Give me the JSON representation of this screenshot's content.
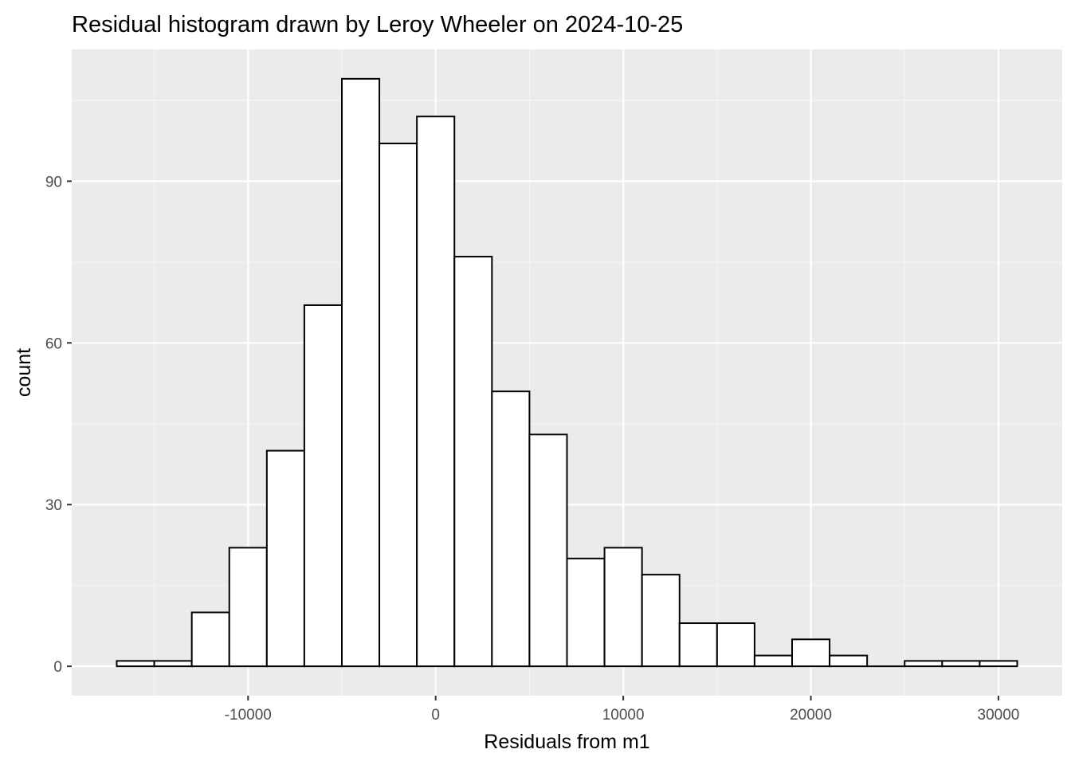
{
  "chart_data": {
    "type": "bar",
    "title": "Residual histogram drawn by Leroy Wheeler on 2024-10-25",
    "xlabel": "Residuals from m1",
    "ylabel": "count",
    "bin_width": 2000,
    "bins": [
      {
        "x0": -17000,
        "x1": -15000,
        "count": 1
      },
      {
        "x0": -15000,
        "x1": -13000,
        "count": 1
      },
      {
        "x0": -13000,
        "x1": -11000,
        "count": 10
      },
      {
        "x0": -11000,
        "x1": -9000,
        "count": 22
      },
      {
        "x0": -9000,
        "x1": -7000,
        "count": 40
      },
      {
        "x0": -7000,
        "x1": -5000,
        "count": 67
      },
      {
        "x0": -5000,
        "x1": -3000,
        "count": 109
      },
      {
        "x0": -3000,
        "x1": -1000,
        "count": 97
      },
      {
        "x0": -1000,
        "x1": 1000,
        "count": 102
      },
      {
        "x0": 1000,
        "x1": 3000,
        "count": 76
      },
      {
        "x0": 3000,
        "x1": 5000,
        "count": 51
      },
      {
        "x0": 5000,
        "x1": 7000,
        "count": 43
      },
      {
        "x0": 7000,
        "x1": 9000,
        "count": 20
      },
      {
        "x0": 9000,
        "x1": 11000,
        "count": 22
      },
      {
        "x0": 11000,
        "x1": 13000,
        "count": 17
      },
      {
        "x0": 13000,
        "x1": 15000,
        "count": 8
      },
      {
        "x0": 15000,
        "x1": 17000,
        "count": 8
      },
      {
        "x0": 17000,
        "x1": 19000,
        "count": 2
      },
      {
        "x0": 19000,
        "x1": 21000,
        "count": 5
      },
      {
        "x0": 21000,
        "x1": 23000,
        "count": 2
      },
      {
        "x0": 23000,
        "x1": 25000,
        "count": 0
      },
      {
        "x0": 25000,
        "x1": 27000,
        "count": 1
      },
      {
        "x0": 27000,
        "x1": 29000,
        "count": 1
      },
      {
        "x0": 29000,
        "x1": 31000,
        "count": 1
      }
    ],
    "x_ticks": [
      -10000,
      0,
      10000,
      20000,
      30000
    ],
    "x_tick_labels": [
      "-10000",
      "0",
      "10000",
      "20000",
      "30000"
    ],
    "y_ticks": [
      0,
      30,
      60,
      90
    ],
    "y_tick_labels": [
      "0",
      "30",
      "60",
      "90"
    ],
    "xlim": [
      -19400,
      33400
    ],
    "ylim": [
      -5.45,
      114.45
    ],
    "grid": true,
    "colors": {
      "panel_background": "#ebebeb",
      "grid_major": "#ffffff",
      "grid_minor": "#f5f5f5",
      "bar_fill": "#ffffff",
      "bar_outline": "#000000",
      "tick_text": "#4d4d4d",
      "tick_mark": "#333333"
    }
  }
}
